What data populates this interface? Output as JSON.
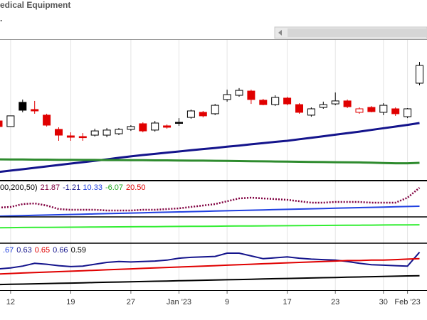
{
  "chart_data": [
    {
      "type": "candlestick",
      "title": "edical Equipment",
      "subtitle": ".",
      "categories": [
        null,
        "12",
        null,
        null,
        null,
        null,
        "19",
        null,
        null,
        null,
        null,
        "27",
        null,
        null,
        null,
        "Jan '23",
        null,
        null,
        null,
        "9",
        null,
        null,
        null,
        null,
        "17",
        null,
        null,
        null,
        "23",
        null,
        null,
        null,
        "30",
        null,
        "Feb '23",
        null
      ],
      "open": [
        41.9,
        37.9,
        55.1,
        50.0,
        46.0,
        35.9,
        31.3,
        30.8,
        31.8,
        31.8,
        32.8,
        35.9,
        39.9,
        35.4,
        38.4,
        40.9,
        44.4,
        48.0,
        47.0,
        57.1,
        60.1,
        63.1,
        56.6,
        53.5,
        58.1,
        53.5,
        46.0,
        51.5,
        54.0,
        56.1,
        48.0,
        51.5,
        48.0,
        50.5,
        44.9,
        68.7
      ],
      "high": [
        41.9,
        45.5,
        57.1,
        56.1,
        47.0,
        37.4,
        33.8,
        33.3,
        36.4,
        36.9,
        36.9,
        38.9,
        40.9,
        41.9,
        39.4,
        43.9,
        50.0,
        49.0,
        54.0,
        64.1,
        65.2,
        64.1,
        57.6,
        60.1,
        59.1,
        54.5,
        51.5,
        55.6,
        62.1,
        57.1,
        51.5,
        52.5,
        54.5,
        51.5,
        51.0,
        83.8
      ],
      "low": [
        37.9,
        37.9,
        48.0,
        47.0,
        37.9,
        27.8,
        27.8,
        27.8,
        30.8,
        30.3,
        31.8,
        34.8,
        33.8,
        34.3,
        36.4,
        38.4,
        43.4,
        44.4,
        46.0,
        55.6,
        59.1,
        54.0,
        53.0,
        52.5,
        53.0,
        47.0,
        44.9,
        50.5,
        53.0,
        51.0,
        47.0,
        48.0,
        46.0,
        45.5,
        43.9,
        67.2
      ],
      "close": [
        37.9,
        45.5,
        49.5,
        49.0,
        38.9,
        31.8,
        30.3,
        30.0,
        34.8,
        35.4,
        35.9,
        37.9,
        34.8,
        40.4,
        37.4,
        40.4,
        49.0,
        45.5,
        53.0,
        60.6,
        63.6,
        57.1,
        53.5,
        58.6,
        54.0,
        48.0,
        50.5,
        53.5,
        56.1,
        52.0,
        50.5,
        48.5,
        53.0,
        47.0,
        50.5,
        81.3
      ],
      "up_color": "#000000",
      "down_color": "#e00000",
      "series": [
        {
          "color": "#14148c",
          "values": [
            5.6,
            6.6,
            7.6,
            8.6,
            9.6,
            10.6,
            11.6,
            12.6,
            13.6,
            14.6,
            15.7,
            16.7,
            17.7,
            18.5,
            19.4,
            20.2,
            21.1,
            21.9,
            22.7,
            23.6,
            24.4,
            25.3,
            26.1,
            27.0,
            27.8,
            28.9,
            29.9,
            31.0,
            32.1,
            33.2,
            34.3,
            35.5,
            36.7,
            37.9,
            39.1,
            40.4
          ]
        },
        {
          "color": "#2e8b2e",
          "values": [
            14.6,
            14.5,
            14.5,
            14.4,
            14.4,
            14.3,
            14.3,
            14.2,
            14.2,
            14.1,
            14.1,
            14.0,
            14.0,
            13.9,
            13.9,
            13.8,
            13.7,
            13.7,
            13.6,
            13.5,
            13.4,
            13.3,
            13.2,
            13.1,
            13.0,
            12.9,
            12.8,
            12.7,
            12.6,
            12.5,
            12.4,
            12.2,
            12.0,
            11.8,
            11.8,
            12.1
          ]
        }
      ],
      "ylim": [
        0,
        100
      ],
      "grid": true
    },
    {
      "type": "line",
      "legend_title": "00,200,50)",
      "readouts": [
        {
          "text": "21.87",
          "color": "#800040"
        },
        {
          "text": "-1.21",
          "color": "#14148c"
        },
        {
          "text": "10.33",
          "color": "#2040e0"
        },
        {
          "text": "-6.07",
          "color": "#22aa22"
        },
        {
          "text": "20.50",
          "color": "#e00000"
        }
      ],
      "series": [
        {
          "color": "#800040",
          "style": "dotted",
          "values": [
            26,
            28,
            36,
            38,
            32,
            22,
            20,
            20,
            20,
            18,
            18,
            18,
            20,
            20,
            22,
            24,
            28,
            32,
            36,
            44,
            52,
            54,
            52,
            50,
            48,
            44,
            40,
            40,
            42,
            42,
            42,
            40,
            40,
            40,
            54,
            82
          ]
        },
        {
          "color": "#2040e0",
          "style": "solid",
          "values": [
            2,
            2.8,
            3.6,
            4.4,
            5.2,
            6,
            6.8,
            7.6,
            8.4,
            9.2,
            10,
            10.8,
            11.6,
            12.4,
            13.2,
            14,
            14.8,
            15.6,
            16.4,
            17.2,
            18,
            18.8,
            19.6,
            20.4,
            21.2,
            22,
            22.8,
            23.6,
            24.4,
            25.2,
            26,
            26.8,
            27.6,
            28.4,
            29.2,
            30
          ]
        }
      ],
      "ylim": [
        0,
        100
      ]
    },
    {
      "type": "line",
      "series": [
        {
          "color": "#33ee33",
          "style": "solid",
          "values": [
            59,
            59.3,
            59.6,
            59.9,
            60.3,
            60.6,
            60.9,
            61.2,
            61.5,
            61.8,
            62.1,
            62.5,
            62.8,
            63.1,
            63.4,
            63.7,
            64,
            64.3,
            64.7,
            65,
            65.3,
            65.6,
            65.9,
            66.2,
            66.5,
            66.9,
            67.2,
            67.5,
            67.8,
            68.1,
            68.4,
            68.7,
            69.1,
            69.4,
            69.7,
            70
          ]
        }
      ],
      "ylim": [
        0,
        100
      ]
    },
    {
      "type": "line",
      "readouts": [
        {
          "text": ".67",
          "color": "#2040e0"
        },
        {
          "text": "0.63",
          "color": "#14148c"
        },
        {
          "text": "0.65",
          "color": "#e00000"
        },
        {
          "text": "0.66",
          "color": "#14148c"
        },
        {
          "text": "0.59",
          "color": "#000000"
        }
      ],
      "series": [
        {
          "color": "#14148c",
          "style": "solid",
          "values": [
            46,
            48,
            52,
            58,
            56,
            53,
            51,
            52,
            56,
            60,
            62,
            61,
            62,
            63,
            65,
            69,
            71,
            72,
            73,
            80,
            80,
            74,
            68,
            70,
            72,
            69,
            67,
            66,
            65,
            62,
            58,
            55,
            54,
            53,
            52,
            82
          ]
        },
        {
          "color": "#e00000",
          "style": "solid",
          "values": [
            35,
            36,
            37,
            38,
            39,
            40,
            41,
            42,
            43,
            44,
            45,
            46,
            47,
            48,
            49,
            50,
            51,
            52,
            53,
            54,
            55,
            56,
            57,
            58,
            59,
            60,
            61,
            62,
            63,
            64,
            64,
            65,
            65,
            66,
            67,
            68
          ]
        },
        {
          "color": "#000000",
          "style": "solid",
          "values": [
            12,
            12.6,
            13.1,
            13.7,
            14.2,
            14.8,
            15.3,
            15.9,
            16.4,
            17,
            17.5,
            18.1,
            18.6,
            19.2,
            19.7,
            20.3,
            20.8,
            21.4,
            21.9,
            22.5,
            23,
            23.6,
            24.1,
            24.7,
            25.2,
            25.8,
            26.3,
            26.9,
            27.4,
            28,
            28.5,
            29.1,
            29.6,
            30.2,
            30.7,
            31.3
          ]
        }
      ],
      "ylim": [
        0,
        100
      ]
    }
  ]
}
